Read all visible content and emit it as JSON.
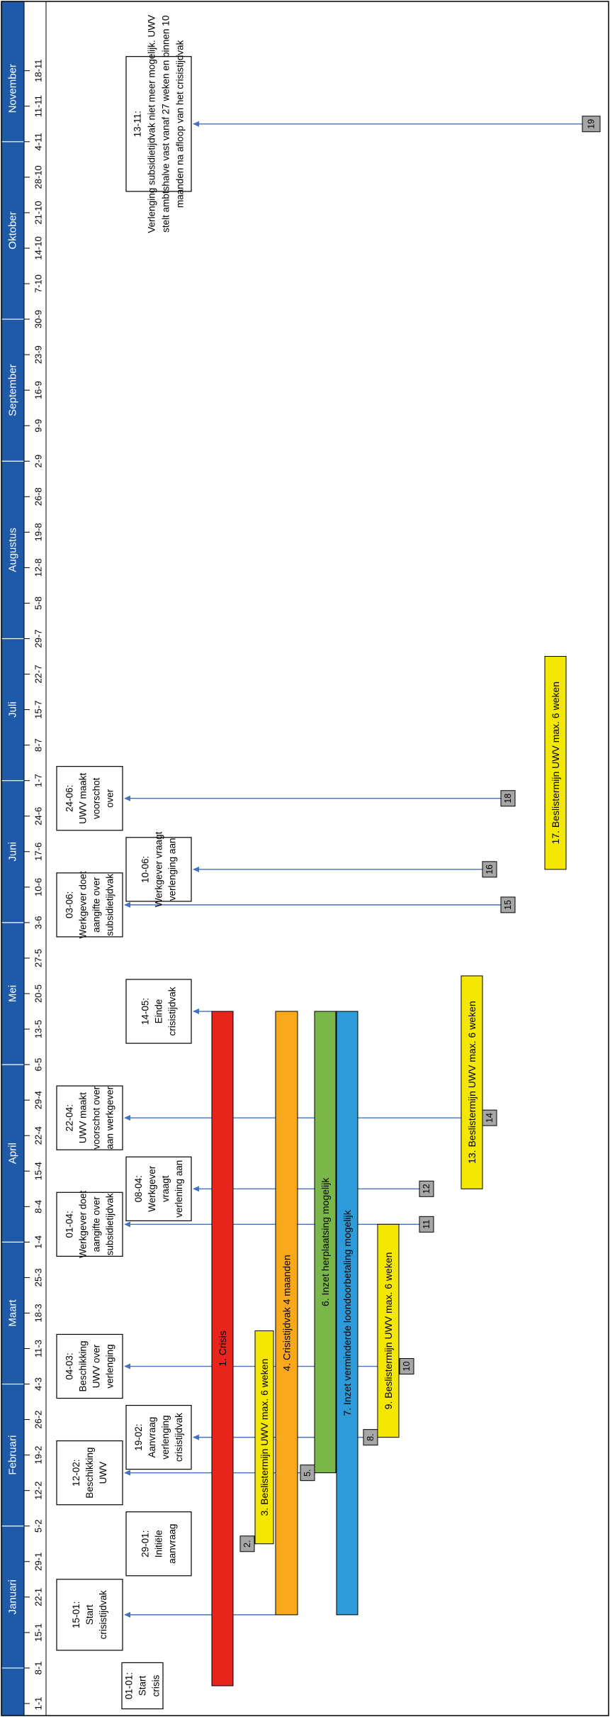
{
  "months": [
    {
      "label": "Januari",
      "start": 1,
      "end": 5
    },
    {
      "label": "Februari",
      "start": 5,
      "end": 9
    },
    {
      "label": "Maart",
      "start": 9,
      "end": 13
    },
    {
      "label": "April",
      "start": 13,
      "end": 18
    },
    {
      "label": "Mei",
      "start": 18,
      "end": 22
    },
    {
      "label": "Juni",
      "start": 22,
      "end": 26
    },
    {
      "label": "Juli",
      "start": 26,
      "end": 30
    },
    {
      "label": "Augustus",
      "start": 30,
      "end": 35
    },
    {
      "label": "September",
      "start": 35,
      "end": 39
    },
    {
      "label": "Oktober",
      "start": 39,
      "end": 44
    },
    {
      "label": "November",
      "start": 44,
      "end": 47
    }
  ],
  "weeks": [
    "1-1",
    "8-1",
    "15-1",
    "22-1",
    "29-1",
    "5-2",
    "12-2",
    "19-2",
    "26-2",
    "4-3",
    "11-3",
    "18-3",
    "25-3",
    "1-4",
    "8-4",
    "15-4",
    "22-4",
    "29-4",
    "6-5",
    "13-5",
    "20-5",
    "27-5",
    "3-6",
    "10-6",
    "17-6",
    "24-6",
    "1-7",
    "8-7",
    "15-7",
    "22-7",
    "29-7",
    "5-8",
    "12-8",
    "19-8",
    "26-8",
    "2-9",
    "9-9",
    "16-9",
    "23-9",
    "30-9",
    "7-10",
    "14-10",
    "21-10",
    "28-10",
    "4-11",
    "11-11",
    "18-11"
  ],
  "events": [
    {
      "lines": [
        "01-01:",
        "Start",
        "crisis"
      ],
      "pos": 0.5,
      "span": 1.3,
      "col": 0
    },
    {
      "lines": [
        "15-01:",
        "Start",
        "crisistijdvak"
      ],
      "pos": 2.5,
      "span": 2.0,
      "col": 1
    },
    {
      "lines": [
        "29-01:",
        "Initiële",
        "aanvraag"
      ],
      "pos": 4.5,
      "span": 1.8,
      "col": 2
    },
    {
      "lines": [
        "12-02:",
        "Beschikking",
        "UWV"
      ],
      "pos": 6.5,
      "span": 1.8,
      "col": 1
    },
    {
      "lines": [
        "19-02:",
        "Aanvraag",
        "verlenging",
        "crisistijdvak"
      ],
      "pos": 7.5,
      "span": 1.8,
      "col": 2
    },
    {
      "lines": [
        "04-03:",
        "Beschikking",
        "UWV over",
        "verlenging"
      ],
      "pos": 9.5,
      "span": 1.8,
      "col": 1
    },
    {
      "lines": [
        "01-04:",
        "Werkgever doet",
        "aangifte over",
        "subsidietijdvak"
      ],
      "pos": 13.5,
      "span": 1.8,
      "col": 1
    },
    {
      "lines": [
        "08-04:",
        "Werkgever",
        "vraagt",
        "verlening aan"
      ],
      "pos": 14.5,
      "span": 1.8,
      "col": 2
    },
    {
      "lines": [
        "22-04:",
        "UWV maakt",
        "voorschot over",
        "aan werkgever"
      ],
      "pos": 16.5,
      "span": 1.8,
      "col": 1
    },
    {
      "lines": [
        "14-05:",
        "Einde",
        "crisistijdvak"
      ],
      "pos": 19.5,
      "span": 1.8,
      "col": 2
    },
    {
      "lines": [
        "03-06:",
        "Werkgever doet",
        "aangifte over",
        "subsidietijdvak"
      ],
      "pos": 22.5,
      "span": 1.8,
      "col": 1
    },
    {
      "lines": [
        "10-06:",
        "Werkgever vraagt",
        "verlenging aan"
      ],
      "pos": 23.5,
      "span": 1.8,
      "col": 2
    },
    {
      "lines": [
        "24-06:",
        "UWV maakt",
        "voorschot",
        "over"
      ],
      "pos": 25.5,
      "span": 1.8,
      "col": 1
    },
    {
      "lines": [
        "13-11:",
        "Verlenging subsidietijdvak niet meer mogelijk. UWV",
        "stelt ambtshalve vast vanaf 27 weken en binnen 10",
        "maanden na afloop van het crisistijdvak"
      ],
      "pos": 44.5,
      "span": 3.8,
      "col": 3
    }
  ],
  "bars": [
    {
      "label": "1. Crisis",
      "start": 0.5,
      "end": 19.5,
      "col": 0,
      "color": "#E8251C"
    },
    {
      "label": "3. Beslistermijn UWV max. 6 weken",
      "start": 4.5,
      "end": 10.5,
      "col": 1,
      "color": "#F5E800"
    },
    {
      "label": "4. Crisistijdvak 4 maanden",
      "start": 2.5,
      "end": 19.5,
      "col": 2,
      "color": "#F7A81B"
    },
    {
      "label": "6. Inzet herplaatsing mogelijk",
      "start": 6.5,
      "end": 19.5,
      "col": 3,
      "color": "#7AB648"
    },
    {
      "label": "7. Inzet verminderde loondoorbetaling mogelijk",
      "start": 2.5,
      "end": 19.5,
      "col": 4,
      "color": "#2D9BD7"
    },
    {
      "label": "9. Beslistermijn UWV max. 6 weken",
      "start": 7.5,
      "end": 13.5,
      "col": 5,
      "color": "#F5E800"
    },
    {
      "label": "13. Beslistermijn UWV max. 6 weken",
      "start": 14.5,
      "end": 20.5,
      "col": 6,
      "color": "#F5E800"
    },
    {
      "label": "17. Beslistermijn UWV max. 6 weken",
      "start": 23.5,
      "end": 29.5,
      "col": 7,
      "color": "#F5E800"
    }
  ],
  "markers": [
    {
      "label": "2.",
      "pos": 4.5,
      "col": 1
    },
    {
      "label": "5.",
      "pos": 6.5,
      "col": 2
    },
    {
      "label": "8.",
      "pos": 7.5,
      "col": 4
    },
    {
      "label": "10",
      "pos": 9.5,
      "col": 5
    },
    {
      "label": "11",
      "pos": 13.5,
      "col": 6
    },
    {
      "label": "12",
      "pos": 14.5,
      "col": 6
    },
    {
      "label": "14",
      "pos": 16.5,
      "col": 7
    },
    {
      "label": "15",
      "pos": 22.5,
      "col": 8
    },
    {
      "label": "16",
      "pos": 23.5,
      "col": 7
    },
    {
      "label": "18",
      "pos": 25.5,
      "col": 8
    },
    {
      "label": "19",
      "pos": 44.5,
      "col": 9
    }
  ],
  "arrows": [
    {
      "pos": 2.5,
      "from": "bar4",
      "to": 1
    },
    {
      "pos": 6.5,
      "from": "m5",
      "to": 1
    },
    {
      "pos": 7.5,
      "from": "m8",
      "to": 2
    },
    {
      "pos": 9.5,
      "from": "m10",
      "to": 1
    },
    {
      "pos": 13.5,
      "from": "m11",
      "to": 1
    },
    {
      "pos": 14.5,
      "from": "m12",
      "to": 2
    },
    {
      "pos": 16.5,
      "from": "m14",
      "to": 1
    },
    {
      "pos": 19.5,
      "from": "bar1",
      "to": 2
    },
    {
      "pos": 22.5,
      "from": "m15",
      "to": 1
    },
    {
      "pos": 23.5,
      "from": "m16",
      "to": 2
    },
    {
      "pos": 25.5,
      "from": "m18",
      "to": 1
    },
    {
      "pos": 44.5,
      "from": "m19",
      "to": 3
    }
  ],
  "colors": {
    "month_band": "#1F5AA8",
    "month_text": "#FFFFFF",
    "arrow": "#4472C4",
    "marker": "#A6A6A6",
    "border": "#000000"
  }
}
